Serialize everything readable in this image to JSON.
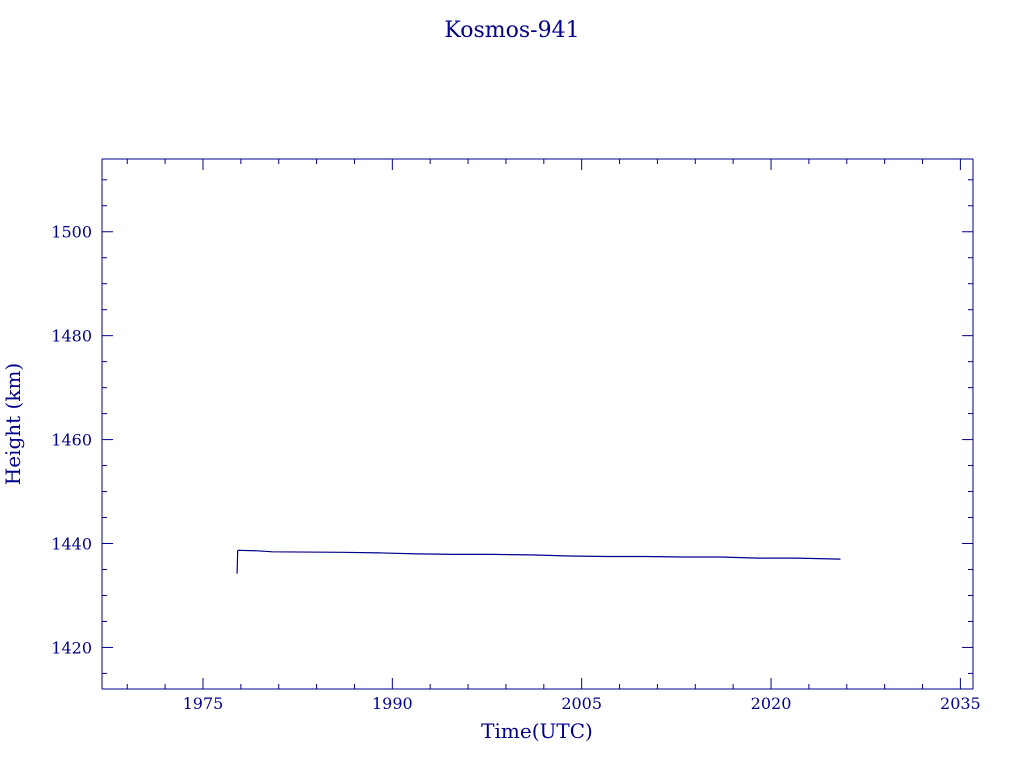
{
  "chart_data": {
    "type": "line",
    "title": "Kosmos-941",
    "xlabel": "Time(UTC)",
    "ylabel": "Height (km)",
    "xlim": [
      1967,
      2036
    ],
    "ylim": [
      1412,
      1514
    ],
    "x_ticks": [
      1975,
      1990,
      2005,
      2020,
      2035
    ],
    "y_ticks": [
      1420,
      1440,
      1460,
      1480,
      1500
    ],
    "x_minor_step": 3,
    "y_minor_step": 5,
    "grid": false,
    "line_color": "#00008b",
    "series": [
      {
        "x": [
          1977.7,
          1977.75,
          1977.8,
          1979.3,
          1980.5,
          1986,
          1989,
          1992,
          1995,
          1998,
          2001,
          2004,
          2007,
          2010,
          2013,
          2016,
          2019,
          2022,
          2025.5
        ],
        "y": [
          1434.2,
          1438.6,
          1438.7,
          1438.6,
          1438.4,
          1438.3,
          1438.2,
          1438.0,
          1437.9,
          1437.9,
          1437.8,
          1437.6,
          1437.5,
          1437.5,
          1437.4,
          1437.4,
          1437.2,
          1437.2,
          1437.0
        ]
      }
    ]
  }
}
